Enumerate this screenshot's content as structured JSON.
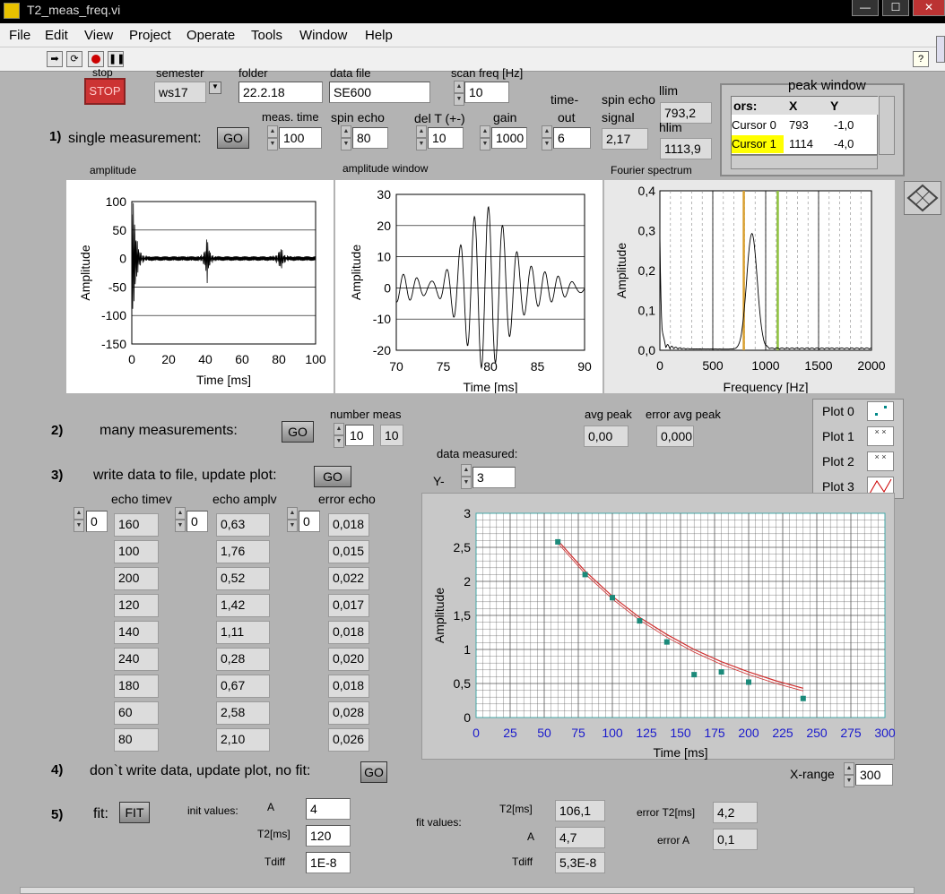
{
  "window": {
    "title": "T2_meas_freq.vi",
    "min": "—",
    "max": "☐",
    "close": "✕"
  },
  "menu": [
    "File",
    "Edit",
    "View",
    "Project",
    "Operate",
    "Tools",
    "Window",
    "Help"
  ],
  "toolbar": {
    "help": "?"
  },
  "top": {
    "stop_label": "stop",
    "stop_button": "STOP",
    "semester_label": "semester",
    "semester_value": "ws17",
    "folder_label": "folder",
    "folder_value": "22.2.18",
    "datafile_label": "data file",
    "datafile_value": "SE600",
    "scanfreq_label": "scan freq [Hz]",
    "scanfreq_value": "10",
    "llim_label": "llim",
    "llim_value": "793,2",
    "hlim_label": "hlim",
    "hlim_value": "1113,9"
  },
  "peak_window": {
    "title": "peak window",
    "headers": [
      "ors:",
      "X",
      "Y"
    ],
    "rows": [
      {
        "name": "Cursor 0",
        "x": "793",
        "y": "-1,0"
      },
      {
        "name": "Cursor 1",
        "x": "1114",
        "y": "-4,0"
      }
    ]
  },
  "single": {
    "num": "1)",
    "label": "single measurement:",
    "go": "GO",
    "meas_time_label": "meas. time",
    "meas_time_value": "100",
    "spin_echo_label": "spin echo",
    "spin_echo_value": "80",
    "delt_label": "del T (+-)",
    "delt_value": "10",
    "gain_label": "gain",
    "gain_value": "1000",
    "timeout_label1": "time-",
    "timeout_label2": "out",
    "timeout_value": "6",
    "signal_label1": "spin echo",
    "signal_label2": "signal",
    "signal_value": "2,17"
  },
  "graphs": {
    "amp": {
      "title": "amplitude",
      "ylabel": "Amplitude",
      "xlabel": "Time  [ms]",
      "yticks": [
        "100",
        "50",
        "0",
        "-50",
        "-100",
        "-150"
      ],
      "xticks": [
        "0",
        "20",
        "40",
        "60",
        "80",
        "100"
      ]
    },
    "win": {
      "title": "amplitude window",
      "ylabel": "Amplitude",
      "xlabel": "Time [ms]",
      "yticks": [
        "30",
        "20",
        "10",
        "0",
        "-10",
        "-20"
      ],
      "xticks": [
        "70",
        "75",
        "80",
        "85",
        "90"
      ]
    },
    "fft": {
      "title": "Fourier spectrum",
      "ylabel": "Amplitude",
      "xlabel": "Frequency [Hz]",
      "yticks": [
        "0,4",
        "0,3",
        "0,2",
        "0,1",
        "0,0"
      ],
      "xticks": [
        "0",
        "500",
        "1000",
        "1500",
        "2000"
      ]
    }
  },
  "many": {
    "num": "2)",
    "label": "many measurements:",
    "go": "GO",
    "number_label": "number meas",
    "number_value": "10",
    "number_ind": "10",
    "avg_label": "avg peak",
    "avg_value": "0,00",
    "err_label": "error avg peak",
    "err_value": "0,000"
  },
  "write": {
    "num": "3)",
    "label": "write data to file, update plot:",
    "go": "GO",
    "data_measured": "data measured:",
    "y_label": "Y-",
    "y_value": "3",
    "col1_label": "echo timev",
    "col2_label": "echo amplv",
    "col3_label": "error echo",
    "idx1": "0",
    "idx2": "0",
    "idx3": "0",
    "echo_time": [
      "160",
      "100",
      "200",
      "120",
      "140",
      "240",
      "180",
      "60",
      "80"
    ],
    "echo_ampl": [
      "0,63",
      "1,76",
      "0,52",
      "1,42",
      "1,11",
      "0,28",
      "0,67",
      "2,58",
      "2,10"
    ],
    "error_echo": [
      "0,018",
      "0,015",
      "0,022",
      "0,017",
      "0,018",
      "0,020",
      "0,018",
      "0,028",
      "0,026"
    ]
  },
  "legend": [
    "Plot 0",
    "Plot 1",
    "Plot 2",
    "Plot 3"
  ],
  "chart_data": {
    "type": "scatter",
    "title": "",
    "xlabel": "Time [ms]",
    "ylabel": "Amplitude",
    "xlim": [
      0,
      300
    ],
    "ylim": [
      0,
      3
    ],
    "xticks": [
      "0",
      "25",
      "50",
      "75",
      "100",
      "125",
      "150",
      "175",
      "200",
      "225",
      "250",
      "275",
      "300"
    ],
    "yticks": [
      "3",
      "2,5",
      "2",
      "1,5",
      "1",
      "0,5",
      "0"
    ],
    "series": [
      {
        "name": "Plot 0",
        "x": [
          60,
          80,
          100,
          120,
          140,
          160,
          180,
          200,
          240
        ],
        "y": [
          2.58,
          2.1,
          1.76,
          1.42,
          1.11,
          0.63,
          0.67,
          0.52,
          0.28
        ]
      },
      {
        "name": "Plot 3",
        "x": [
          60,
          80,
          100,
          120,
          140,
          160,
          180,
          200,
          220,
          240
        ],
        "y": [
          2.6,
          2.15,
          1.78,
          1.47,
          1.22,
          1.0,
          0.82,
          0.67,
          0.54,
          0.43
        ]
      }
    ],
    "grid": true
  },
  "xrange": {
    "label": "X-range",
    "value": "300"
  },
  "nowrite": {
    "num": "4)",
    "label": "don`t write data, update plot, no fit:",
    "go": "GO"
  },
  "fit": {
    "num": "5)",
    "label": "fit:",
    "button": "FIT",
    "init_label": "init values:",
    "A_label": "A",
    "A_value": "4",
    "T2_label": "T2[ms]",
    "T2_value": "120",
    "Tdiff_label": "Tdiff",
    "Tdiff_value": "1E-8",
    "fitvals_label": "fit values:",
    "fT2_label": "T2[ms]",
    "fT2_value": "106,1",
    "fA_label": "A",
    "fA_value": "4,7",
    "fTdiff_label": "Tdiff",
    "fTdiff_value": "5,3E-8",
    "errT2_label": "error T2[ms]",
    "errT2_value": "4,2",
    "errA_label": "error A",
    "errA_value": "0,1"
  }
}
